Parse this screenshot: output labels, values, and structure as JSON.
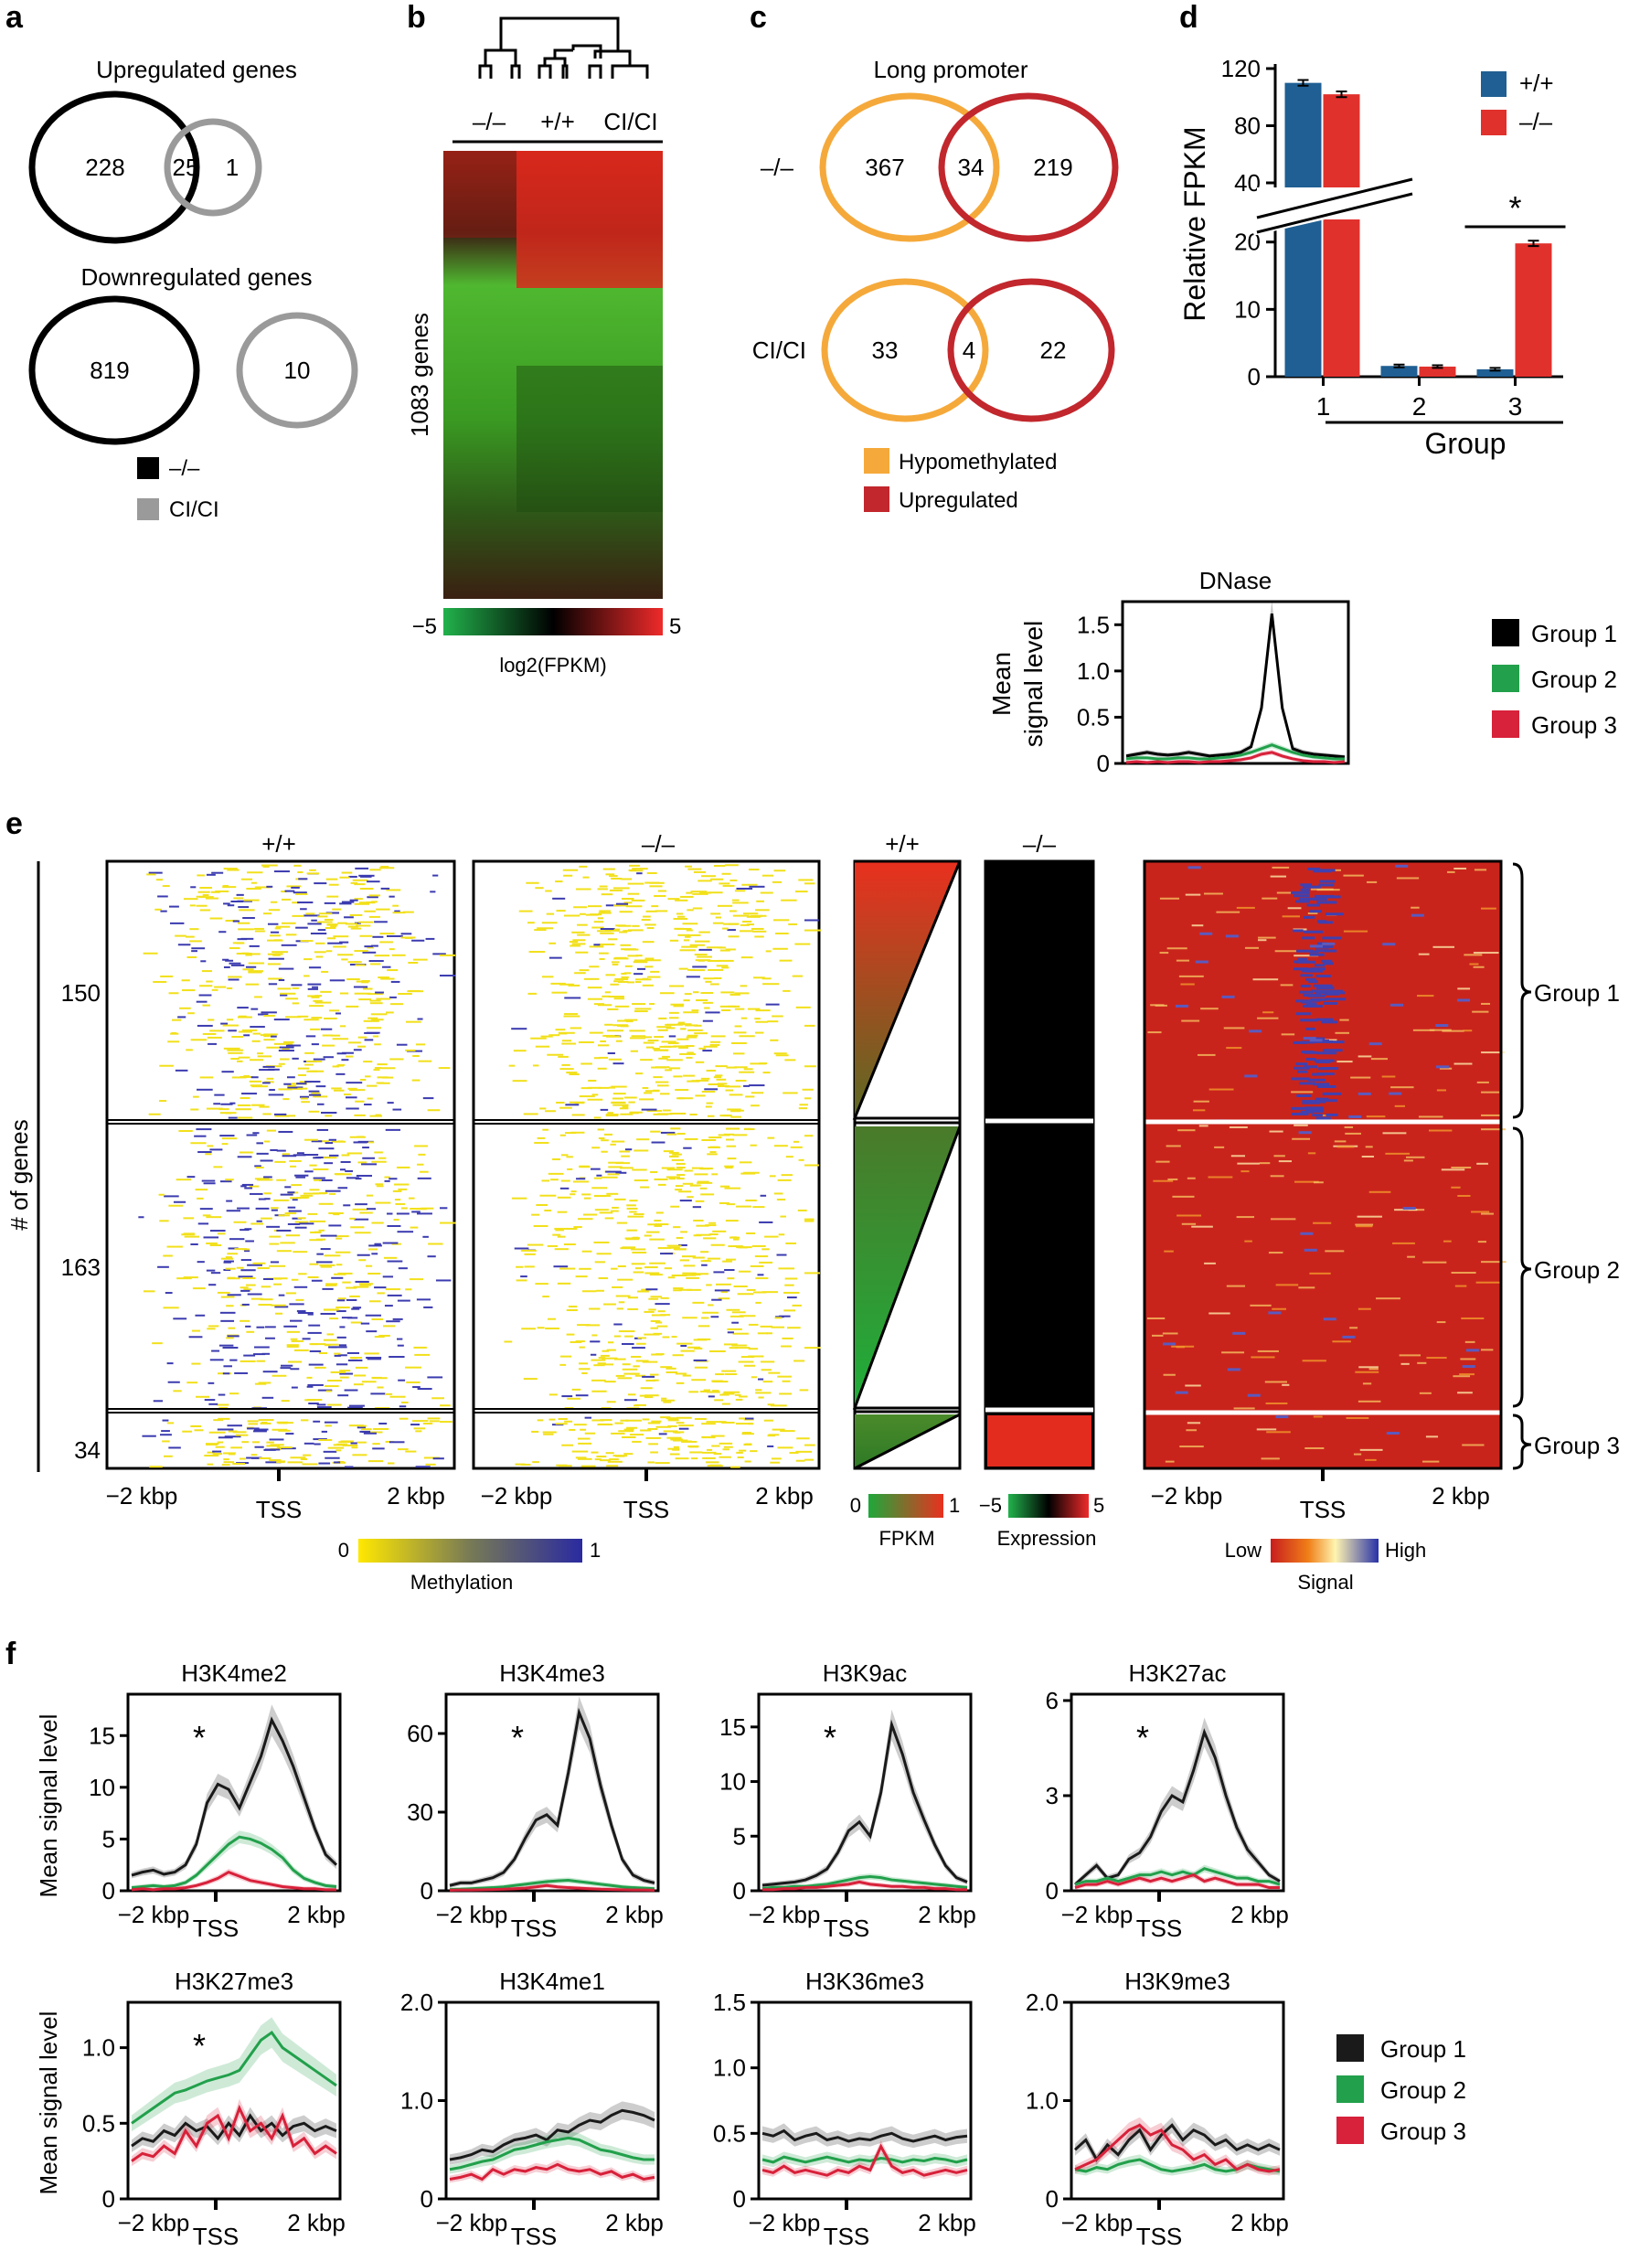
{
  "panels": {
    "a": {
      "label": "a",
      "upregulated": {
        "title": "Upregulated genes",
        "left_only": "228",
        "overlap": "25",
        "right_only": "1"
      },
      "downregulated": {
        "title": "Downregulated genes",
        "left_only": "819",
        "right_only": "10"
      },
      "legend": [
        {
          "label": "–/–",
          "color": "#000000"
        },
        {
          "label": "CI/CI",
          "color": "#9a9a9a"
        }
      ]
    },
    "b": {
      "label": "b",
      "groups": [
        "–/–",
        "+/+",
        "CI/CI"
      ],
      "ylabel": "1083 genes",
      "scale_min": "−5",
      "scale_max": "5",
      "scale_label": "log2(FPKM)"
    },
    "c": {
      "label": "c",
      "title": "Long promoter",
      "rows": [
        {
          "label": "–/–",
          "left_only": "367",
          "overlap": "34",
          "right_only": "219"
        },
        {
          "label": "CI/CI",
          "left_only": "33",
          "overlap": "4",
          "right_only": "22"
        }
      ],
      "legend": [
        {
          "label": "Hypomethylated",
          "color": "#f5a93a"
        },
        {
          "label": "Upregulated",
          "color": "#c1272d"
        }
      ]
    },
    "d": {
      "label": "d"
    },
    "e": {
      "label": "e",
      "col_titles": [
        "+/+",
        "–/–",
        "+/+",
        "–/–"
      ],
      "ylabel": "# of genes",
      "group_counts": [
        "150",
        "163",
        "34"
      ],
      "xticks": [
        "−2 kbp",
        "TSS",
        "2 kbp"
      ],
      "methylation_scale": {
        "min": "0",
        "max": "1",
        "label": "Methylation"
      },
      "fpkm_scale": {
        "min": "0",
        "max": "1",
        "label": "FPKM"
      },
      "expression_scale": {
        "min": "−5",
        "max": "5",
        "label": "Expression"
      },
      "signal_scale": {
        "min": "Low",
        "max": "High",
        "label": "Signal"
      },
      "groups": [
        "Group 1",
        "Group 2",
        "Group 3"
      ]
    },
    "f": {
      "label": "f",
      "ylabel": "Mean signal level",
      "xticks": [
        "−2 kbp",
        "TSS",
        "2 kbp"
      ],
      "legend": [
        {
          "label": "Group 1",
          "color": "#1a1a1a"
        },
        {
          "label": "Group 2",
          "color": "#22a04b"
        },
        {
          "label": "Group 3",
          "color": "#d8213a"
        }
      ]
    }
  },
  "chart_data": [
    {
      "type": "bar",
      "panel": "d",
      "categories": [
        "1",
        "2",
        "3"
      ],
      "xlabel": "Group",
      "ylabel": "Relative FPKM",
      "axis_break": {
        "lower": [
          0,
          22
        ],
        "upper": [
          40,
          120
        ]
      },
      "yticks_lower": [
        0,
        10,
        20
      ],
      "yticks_upper": [
        40,
        80,
        120
      ],
      "series": [
        {
          "name": "+/+",
          "color": "#1f5f93",
          "values": [
            110,
            1.6,
            1.1
          ],
          "errors": [
            2,
            0.2,
            0.2
          ]
        },
        {
          "name": "–/–",
          "color": "#e1312d",
          "values": [
            102,
            1.5,
            19.8
          ],
          "errors": [
            2,
            0.2,
            0.4
          ]
        }
      ],
      "annotation": "*"
    },
    {
      "type": "line",
      "panel": "c-lower",
      "title": "DNase",
      "ylabel": "Mean signal level",
      "ylim": [
        0,
        1.75
      ],
      "yticks": [
        0,
        0.5,
        1.0,
        1.5
      ],
      "series": [
        {
          "name": "Group 1",
          "color": "#000000",
          "values": [
            0.08,
            0.1,
            0.12,
            0.1,
            0.09,
            0.1,
            0.12,
            0.1,
            0.08,
            0.09,
            0.1,
            0.12,
            0.18,
            0.6,
            1.62,
            0.6,
            0.16,
            0.12,
            0.1,
            0.09,
            0.08,
            0.07
          ]
        },
        {
          "name": "Group 2",
          "color": "#22a04b",
          "values": [
            0.05,
            0.06,
            0.06,
            0.05,
            0.05,
            0.06,
            0.06,
            0.05,
            0.05,
            0.06,
            0.07,
            0.09,
            0.12,
            0.16,
            0.2,
            0.16,
            0.12,
            0.09,
            0.07,
            0.06,
            0.05,
            0.05
          ]
        },
        {
          "name": "Group 3",
          "color": "#d8213a",
          "values": [
            0.01,
            0.02,
            0.01,
            0.02,
            0.01,
            0.02,
            0.02,
            0.01,
            0.02,
            0.02,
            0.03,
            0.04,
            0.06,
            0.1,
            0.12,
            0.08,
            0.05,
            0.03,
            0.02,
            0.02,
            0.01,
            0.02
          ]
        }
      ]
    },
    {
      "type": "line",
      "panel": "f",
      "title": "H3K4me2",
      "ylim": [
        0,
        19
      ],
      "yticks": [
        0,
        5,
        10,
        15
      ],
      "star": true,
      "series": [
        {
          "name": "Group 1",
          "color": "#1a1a1a",
          "values": [
            1.5,
            1.8,
            2.0,
            1.6,
            1.8,
            2.5,
            4.5,
            8.5,
            10.3,
            9.8,
            8.0,
            10.5,
            13.0,
            16.5,
            14.5,
            12.0,
            9.0,
            6.0,
            3.5,
            2.5
          ]
        },
        {
          "name": "Group 2",
          "color": "#22a04b",
          "values": [
            0.3,
            0.4,
            0.5,
            0.4,
            0.5,
            0.8,
            1.5,
            2.5,
            3.5,
            4.5,
            5.2,
            5.0,
            4.6,
            4.0,
            3.2,
            2.0,
            1.2,
            0.8,
            0.5,
            0.4
          ]
        },
        {
          "name": "Group 3",
          "color": "#d8213a",
          "values": [
            0.1,
            0.2,
            0.1,
            0.2,
            0.2,
            0.3,
            0.5,
            0.8,
            1.2,
            1.8,
            1.4,
            1.0,
            0.8,
            0.6,
            0.4,
            0.3,
            0.2,
            0.2,
            0.1,
            0.1
          ]
        }
      ]
    },
    {
      "type": "line",
      "panel": "f",
      "title": "H3K4me3",
      "ylim": [
        0,
        75
      ],
      "yticks": [
        0,
        30,
        60
      ],
      "star": true,
      "series": [
        {
          "name": "Group 1",
          "color": "#1a1a1a",
          "values": [
            2,
            3,
            3,
            4,
            5,
            7,
            12,
            20,
            27,
            29,
            25,
            45,
            68,
            58,
            40,
            25,
            12,
            6,
            4,
            3
          ]
        },
        {
          "name": "Group 2",
          "color": "#22a04b",
          "values": [
            0.5,
            0.6,
            0.8,
            1,
            1.2,
            1.5,
            2,
            2.5,
            3,
            3.5,
            3.8,
            4,
            3.5,
            3,
            2.5,
            2,
            1.5,
            1.2,
            1,
            0.8
          ]
        },
        {
          "name": "Group 3",
          "color": "#d8213a",
          "values": [
            0.2,
            0.3,
            0.3,
            0.4,
            0.5,
            0.6,
            0.8,
            1,
            1.5,
            2,
            1.5,
            1.2,
            1,
            0.8,
            0.6,
            0.5,
            0.4,
            0.3,
            0.3,
            0.2
          ]
        }
      ]
    },
    {
      "type": "line",
      "panel": "f",
      "title": "H3K9ac",
      "ylim": [
        0,
        18
      ],
      "yticks": [
        0,
        5,
        10,
        15
      ],
      "star": true,
      "series": [
        {
          "name": "Group 1",
          "color": "#1a1a1a",
          "values": [
            0.5,
            0.6,
            0.7,
            0.8,
            1.0,
            1.4,
            2.0,
            3.5,
            5.5,
            6.3,
            5.0,
            9.0,
            15.2,
            12.5,
            9.0,
            6.5,
            4.2,
            2.3,
            1.2,
            0.8
          ]
        },
        {
          "name": "Group 2",
          "color": "#22a04b",
          "values": [
            0.2,
            0.3,
            0.3,
            0.4,
            0.4,
            0.5,
            0.6,
            0.8,
            1.0,
            1.2,
            1.3,
            1.2,
            1.0,
            0.9,
            0.8,
            0.7,
            0.6,
            0.5,
            0.4,
            0.3
          ]
        },
        {
          "name": "Group 3",
          "color": "#d8213a",
          "values": [
            0.1,
            0.1,
            0.2,
            0.2,
            0.3,
            0.3,
            0.4,
            0.5,
            0.6,
            0.8,
            0.6,
            0.5,
            0.4,
            0.4,
            0.3,
            0.3,
            0.2,
            0.2,
            0.1,
            0.1
          ]
        }
      ]
    },
    {
      "type": "line",
      "panel": "f",
      "title": "H3K27ac",
      "ylim": [
        0,
        6.2
      ],
      "yticks": [
        0,
        3,
        6
      ],
      "star": true,
      "series": [
        {
          "name": "Group 1",
          "color": "#1a1a1a",
          "values": [
            0.2,
            0.5,
            0.8,
            0.4,
            0.5,
            1.0,
            1.2,
            1.7,
            2.5,
            3.0,
            2.8,
            3.8,
            5.0,
            4.2,
            3.0,
            2.0,
            1.3,
            0.9,
            0.5,
            0.3
          ]
        },
        {
          "name": "Group 2",
          "color": "#22a04b",
          "values": [
            0.2,
            0.3,
            0.3,
            0.4,
            0.3,
            0.4,
            0.5,
            0.5,
            0.6,
            0.5,
            0.6,
            0.5,
            0.7,
            0.6,
            0.5,
            0.4,
            0.4,
            0.3,
            0.3,
            0.2
          ]
        },
        {
          "name": "Group 3",
          "color": "#d8213a",
          "values": [
            0.1,
            0.2,
            0.2,
            0.3,
            0.2,
            0.3,
            0.4,
            0.3,
            0.4,
            0.3,
            0.4,
            0.5,
            0.3,
            0.4,
            0.3,
            0.2,
            0.2,
            0.2,
            0.1,
            0.1
          ]
        }
      ]
    },
    {
      "type": "line",
      "panel": "f",
      "title": "H3K27me3",
      "ylim": [
        0,
        1.3
      ],
      "yticks": [
        0,
        0.5,
        1.0
      ],
      "star": true,
      "series": [
        {
          "name": "Group 1",
          "color": "#1a1a1a",
          "values": [
            0.35,
            0.4,
            0.38,
            0.45,
            0.42,
            0.5,
            0.45,
            0.48,
            0.4,
            0.5,
            0.42,
            0.55,
            0.45,
            0.5,
            0.42,
            0.48,
            0.5,
            0.45,
            0.48,
            0.45
          ]
        },
        {
          "name": "Group 2",
          "color": "#22a04b",
          "values": [
            0.5,
            0.55,
            0.6,
            0.65,
            0.7,
            0.72,
            0.75,
            0.78,
            0.8,
            0.82,
            0.85,
            0.95,
            1.05,
            1.1,
            1.0,
            0.95,
            0.9,
            0.85,
            0.8,
            0.75
          ]
        },
        {
          "name": "Group 3",
          "color": "#d8213a",
          "values": [
            0.25,
            0.3,
            0.28,
            0.35,
            0.3,
            0.45,
            0.35,
            0.5,
            0.55,
            0.4,
            0.6,
            0.45,
            0.5,
            0.4,
            0.55,
            0.35,
            0.4,
            0.3,
            0.35,
            0.3
          ]
        }
      ]
    },
    {
      "type": "line",
      "panel": "f",
      "title": "H3K4me1",
      "ylim": [
        0,
        2.0
      ],
      "yticks": [
        0,
        1.0,
        2.0
      ],
      "star": false,
      "series": [
        {
          "name": "Group 1",
          "color": "#1a1a1a",
          "values": [
            0.4,
            0.42,
            0.45,
            0.5,
            0.48,
            0.55,
            0.6,
            0.62,
            0.65,
            0.6,
            0.7,
            0.68,
            0.75,
            0.8,
            0.78,
            0.85,
            0.9,
            0.88,
            0.85,
            0.8
          ]
        },
        {
          "name": "Group 2",
          "color": "#22a04b",
          "values": [
            0.3,
            0.32,
            0.35,
            0.38,
            0.4,
            0.45,
            0.5,
            0.52,
            0.55,
            0.58,
            0.6,
            0.62,
            0.6,
            0.55,
            0.5,
            0.48,
            0.45,
            0.42,
            0.4,
            0.4
          ]
        },
        {
          "name": "Group 3",
          "color": "#d8213a",
          "values": [
            0.2,
            0.22,
            0.25,
            0.2,
            0.3,
            0.25,
            0.3,
            0.28,
            0.32,
            0.3,
            0.35,
            0.3,
            0.28,
            0.3,
            0.25,
            0.28,
            0.22,
            0.25,
            0.2,
            0.22
          ]
        }
      ]
    },
    {
      "type": "line",
      "panel": "f",
      "title": "H3K36me3",
      "ylim": [
        0,
        1.5
      ],
      "yticks": [
        0,
        0.5,
        1.0,
        1.5
      ],
      "star": false,
      "series": [
        {
          "name": "Group 1",
          "color": "#1a1a1a",
          "values": [
            0.5,
            0.48,
            0.52,
            0.45,
            0.48,
            0.5,
            0.45,
            0.47,
            0.44,
            0.46,
            0.45,
            0.48,
            0.5,
            0.46,
            0.44,
            0.46,
            0.48,
            0.45,
            0.47,
            0.48
          ]
        },
        {
          "name": "Group 2",
          "color": "#22a04b",
          "values": [
            0.3,
            0.28,
            0.32,
            0.3,
            0.28,
            0.3,
            0.32,
            0.3,
            0.28,
            0.3,
            0.29,
            0.31,
            0.3,
            0.28,
            0.3,
            0.29,
            0.31,
            0.3,
            0.28,
            0.3
          ]
        },
        {
          "name": "Group 3",
          "color": "#d8213a",
          "values": [
            0.22,
            0.2,
            0.25,
            0.2,
            0.22,
            0.2,
            0.18,
            0.22,
            0.2,
            0.25,
            0.22,
            0.4,
            0.25,
            0.2,
            0.22,
            0.18,
            0.2,
            0.22,
            0.2,
            0.22
          ]
        }
      ]
    },
    {
      "type": "line",
      "panel": "f",
      "title": "H3K9me3",
      "ylim": [
        0,
        2.0
      ],
      "yticks": [
        0,
        1.0,
        2.0
      ],
      "star": false,
      "series": [
        {
          "name": "Group 1",
          "color": "#1a1a1a",
          "values": [
            0.5,
            0.6,
            0.4,
            0.55,
            0.45,
            0.6,
            0.7,
            0.5,
            0.65,
            0.75,
            0.6,
            0.7,
            0.65,
            0.55,
            0.6,
            0.5,
            0.55,
            0.5,
            0.55,
            0.5
          ]
        },
        {
          "name": "Group 2",
          "color": "#22a04b",
          "values": [
            0.3,
            0.28,
            0.32,
            0.3,
            0.35,
            0.38,
            0.4,
            0.35,
            0.3,
            0.28,
            0.3,
            0.32,
            0.35,
            0.3,
            0.28,
            0.3,
            0.35,
            0.32,
            0.3,
            0.28
          ]
        },
        {
          "name": "Group 3",
          "color": "#d8213a",
          "values": [
            0.3,
            0.35,
            0.4,
            0.5,
            0.6,
            0.7,
            0.75,
            0.65,
            0.7,
            0.55,
            0.5,
            0.4,
            0.45,
            0.35,
            0.4,
            0.3,
            0.35,
            0.3,
            0.28,
            0.3
          ]
        }
      ]
    }
  ]
}
